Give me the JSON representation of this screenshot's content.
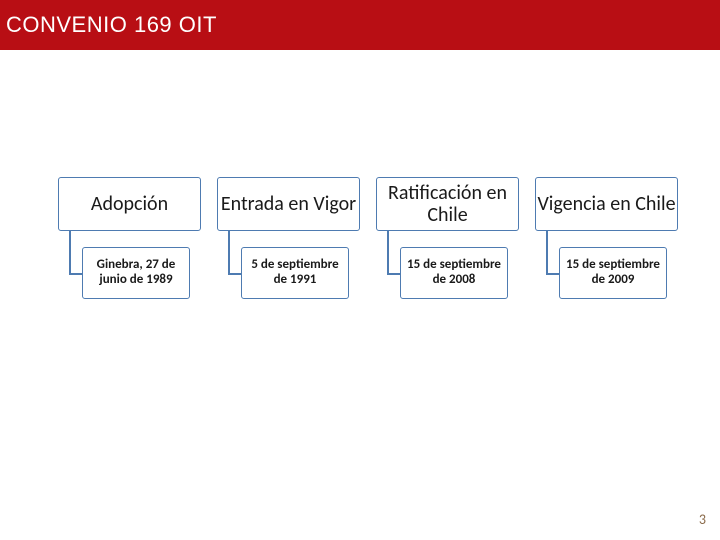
{
  "title": {
    "text": "CONVENIO 169 OIT",
    "bar_background": "#b80e14",
    "text_color": "#ffffff"
  },
  "page_number": {
    "text": "3",
    "color": "#8a6a4a"
  },
  "box_style": {
    "border_color": "#4e7bb1",
    "connector_color": "#4e7bb1",
    "head_text_color": "#1a1a1a",
    "detail_text_color": "#1a1a1a",
    "background": "#ffffff"
  },
  "columns": [
    {
      "head": "Adopción",
      "detail": "Ginebra, 27 de junio de 1989"
    },
    {
      "head": "Entrada en Vigor",
      "detail": "5 de septiembre de 1991"
    },
    {
      "head": "Ratificación en Chile",
      "detail": "15 de septiembre de 2008"
    },
    {
      "head": "Vigencia en Chile",
      "detail": "15 de septiembre de 2009"
    }
  ]
}
